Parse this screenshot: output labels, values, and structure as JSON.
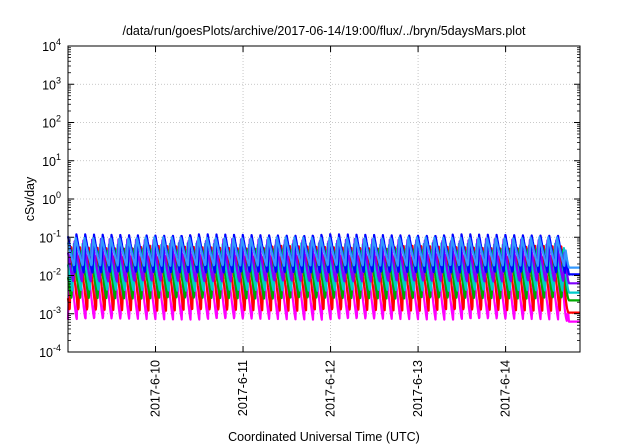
{
  "chart_data": {
    "type": "line",
    "title": "/data/run/goesPlots/archive/2017-06-14/19:00/flux/../bryn/5daysMars.plot",
    "xlabel": "Coordinated Universal Time (UTC)",
    "ylabel": "cSv/day",
    "yscale": "log",
    "ylim": [
      0.0001,
      10000
    ],
    "xlim": [
      0,
      5.85
    ],
    "grid": true,
    "y_ticks": [
      {
        "value": 0.0001,
        "base": "10",
        "exp": "-4"
      },
      {
        "value": 0.001,
        "base": "10",
        "exp": "-3"
      },
      {
        "value": 0.01,
        "base": "10",
        "exp": "-2"
      },
      {
        "value": 0.1,
        "base": "10",
        "exp": "-1"
      },
      {
        "value": 1,
        "base": "10",
        "exp": "0"
      },
      {
        "value": 10,
        "base": "10",
        "exp": "1"
      },
      {
        "value": 100,
        "base": "10",
        "exp": "2"
      },
      {
        "value": 1000,
        "base": "10",
        "exp": "3"
      },
      {
        "value": 10000,
        "base": "10",
        "exp": "4"
      }
    ],
    "x_ticks": [
      {
        "value": 1,
        "label": "2017-6-10"
      },
      {
        "value": 2,
        "label": "2017-6-11"
      },
      {
        "value": 3,
        "label": "2017-6-12"
      },
      {
        "value": 4,
        "label": "2017-6-13"
      },
      {
        "value": 5,
        "label": "2017-6-14"
      }
    ],
    "pattern": {
      "cycles_per_day": 10,
      "end_day": 5.85,
      "drop_start_day": 5.66
    },
    "series": [
      {
        "color": "#ff00ff",
        "peak": 0.035,
        "trough": 0.0007,
        "phase": 0.0
      },
      {
        "color": "#ff0000",
        "peak": 0.06,
        "trough": 0.0012,
        "phase": 0.02
      },
      {
        "color": "#00aa00",
        "peak": 0.05,
        "trough": 0.0025,
        "phase": 0.04
      },
      {
        "color": "#00cccc",
        "peak": 0.07,
        "trough": 0.004,
        "phase": 0.05
      },
      {
        "color": "#7f00ff",
        "peak": 0.09,
        "trough": 0.007,
        "phase": 0.06
      },
      {
        "color": "#0000ff",
        "peak": 0.12,
        "trough": 0.012,
        "phase": 0.08
      },
      {
        "color": "#3399ff",
        "peak": 0.1,
        "trough": 0.018,
        "phase": 0.07
      }
    ]
  }
}
